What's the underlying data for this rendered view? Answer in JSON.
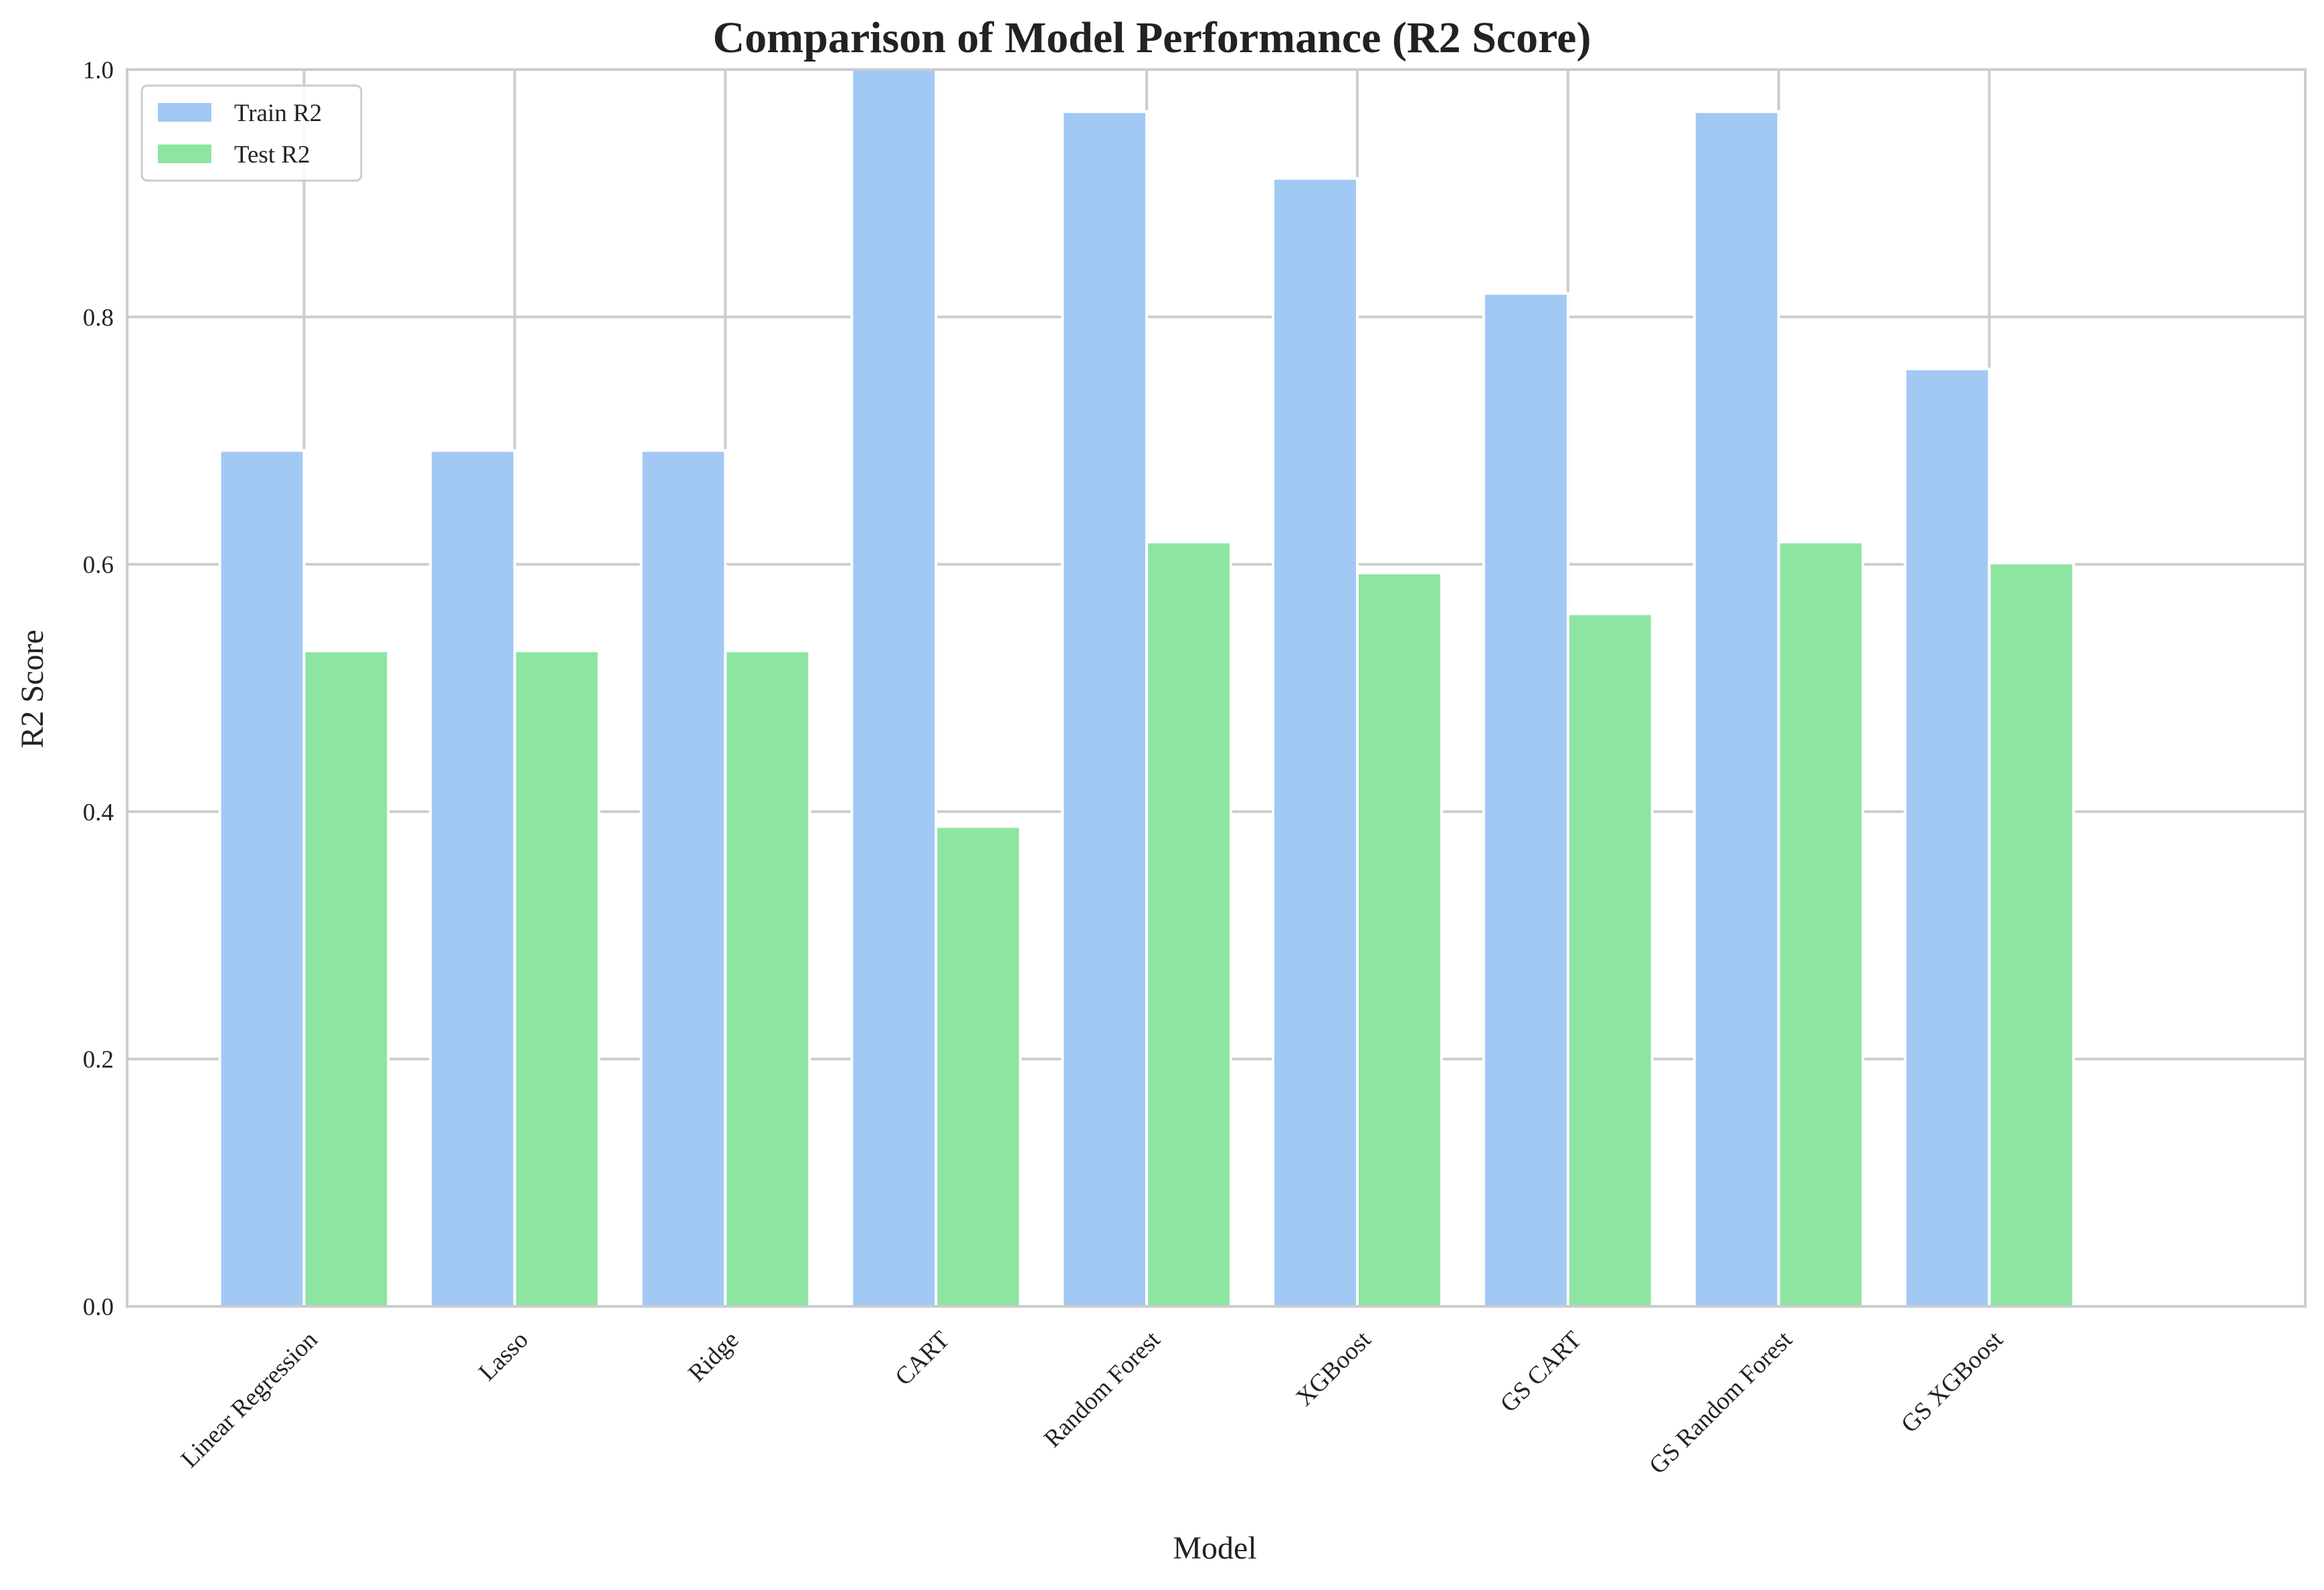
{
  "chart_data": {
    "type": "bar",
    "title": "Comparison of Model Performance (R2 Score)",
    "xlabel": "Model",
    "ylabel": "R2 Score",
    "ylim": [
      0,
      1.0
    ],
    "yticks": [
      "0.0",
      "0.2",
      "0.4",
      "0.6",
      "0.8",
      "1.0"
    ],
    "grid": true,
    "legend_position": "top-left",
    "categories": [
      "Linear Regression",
      "Lasso",
      "Ridge",
      "CART",
      "Random Forest",
      "XGBoost",
      "GS CART",
      "GS Random Forest",
      "GS XGBoost"
    ],
    "series": [
      {
        "name": "Train R2",
        "color": "#a1c9f4",
        "values": [
          0.692,
          0.692,
          0.692,
          1.0,
          0.966,
          0.912,
          0.819,
          0.966,
          0.758
        ]
      },
      {
        "name": "Test R2",
        "color": "#8de5a1",
        "values": [
          0.53,
          0.53,
          0.53,
          0.388,
          0.618,
          0.593,
          0.56,
          0.618,
          0.601
        ]
      }
    ]
  }
}
